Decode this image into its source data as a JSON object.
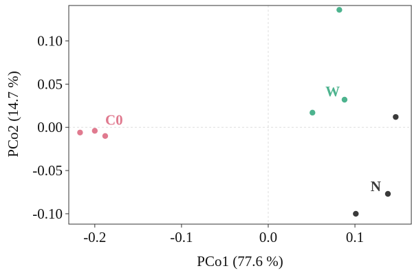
{
  "chart_data": {
    "type": "scatter",
    "title": "",
    "xlabel": "PCo1 (77.6 %)",
    "ylabel": "PCo2 (14.7 %)",
    "xlim": [
      -0.23,
      0.165
    ],
    "ylim": [
      -0.112,
      0.141
    ],
    "x_ticks": [
      {
        "value": -0.2,
        "label": "-0.2"
      },
      {
        "value": -0.1,
        "label": "-0.1"
      },
      {
        "value": 0.0,
        "label": "0.0"
      },
      {
        "value": 0.1,
        "label": "0.1"
      }
    ],
    "y_ticks": [
      {
        "value": 0.1,
        "label": "0.10"
      },
      {
        "value": 0.05,
        "label": "0.05"
      },
      {
        "value": 0.0,
        "label": "0.00"
      },
      {
        "value": -0.05,
        "label": "-0.05"
      },
      {
        "value": -0.1,
        "label": "-0.10"
      }
    ],
    "grid": true,
    "zero_lines": true,
    "series": [
      {
        "name": "C0",
        "color": "#e07a8f",
        "points": [
          {
            "x": -0.217,
            "y": -0.006
          },
          {
            "x": -0.2,
            "y": -0.004
          },
          {
            "x": -0.188,
            "y": -0.01
          }
        ],
        "label_anchor": {
          "x": -0.188,
          "y": 0.003
        }
      },
      {
        "name": "W",
        "color": "#4db38e",
        "points": [
          {
            "x": 0.082,
            "y": 0.136
          },
          {
            "x": 0.088,
            "y": 0.032
          },
          {
            "x": 0.051,
            "y": 0.017
          }
        ],
        "label_anchor": {
          "x": 0.066,
          "y": 0.036
        }
      },
      {
        "name": "N",
        "color": "#3a3a3a",
        "points": [
          {
            "x": 0.147,
            "y": 0.012
          },
          {
            "x": 0.138,
            "y": -0.077
          },
          {
            "x": 0.101,
            "y": -0.1
          }
        ],
        "label_anchor": {
          "x": 0.118,
          "y": -0.074
        }
      }
    ]
  }
}
